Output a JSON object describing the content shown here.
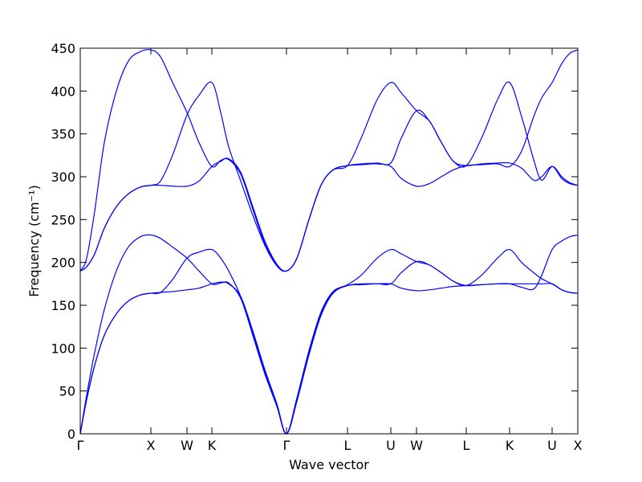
{
  "chart_data": {
    "type": "line",
    "xlabel": "Wave vector",
    "ylabel": "Frequency (cm⁻¹)",
    "xlim": [
      0,
      620
    ],
    "ylim": [
      0,
      450
    ],
    "xticks": [
      {
        "value": 0,
        "label": "Γ"
      },
      {
        "value": 88,
        "label": "X"
      },
      {
        "value": 133,
        "label": "W"
      },
      {
        "value": 164,
        "label": "K"
      },
      {
        "value": 257,
        "label": "Γ"
      },
      {
        "value": 333,
        "label": "L"
      },
      {
        "value": 387,
        "label": "U"
      },
      {
        "value": 419,
        "label": "W"
      },
      {
        "value": 481,
        "label": "L"
      },
      {
        "value": 535,
        "label": "K"
      },
      {
        "value": 588,
        "label": "U"
      },
      {
        "value": 620,
        "label": "X"
      }
    ],
    "yticks": [
      0,
      50,
      100,
      150,
      200,
      250,
      300,
      350,
      400,
      450
    ],
    "x": [
      0,
      8,
      18,
      30,
      45,
      60,
      75,
      88,
      100,
      115,
      133,
      148,
      164,
      175,
      185,
      200,
      215,
      230,
      245,
      257,
      270,
      285,
      300,
      315,
      333,
      350,
      370,
      387,
      400,
      419,
      435,
      450,
      465,
      481,
      500,
      520,
      535,
      550,
      565,
      575,
      588,
      600,
      610,
      620
    ],
    "series": [
      {
        "color": "#0000ff",
        "values": [
          0,
          40,
          80,
          115,
          140,
          155,
          162,
          164,
          165,
          166,
          168,
          170,
          175,
          177,
          175,
          160,
          120,
          75,
          35,
          0,
          38,
          92,
          138,
          164,
          173,
          174,
          175,
          175,
          170,
          167,
          168,
          170,
          172,
          173,
          174,
          175,
          175,
          171,
          169,
          185,
          215,
          225,
          230,
          232
        ]
      },
      {
        "color": "#0000ff",
        "values": [
          0,
          40,
          80,
          115,
          140,
          155,
          162,
          164,
          165,
          180,
          205,
          212,
          215,
          205,
          190,
          160,
          118,
          72,
          33,
          0,
          40,
          95,
          140,
          165,
          173,
          175,
          175,
          175,
          188,
          201,
          197,
          188,
          178,
          173,
          174,
          175,
          175,
          175,
          175,
          175,
          175,
          168,
          165,
          164
        ]
      },
      {
        "color": "#0000ff",
        "values": [
          0,
          45,
          95,
          145,
          190,
          218,
          230,
          232,
          228,
          218,
          205,
          190,
          175,
          176,
          176,
          158,
          115,
          70,
          32,
          0,
          42,
          97,
          142,
          166,
          174,
          185,
          205,
          215,
          210,
          201,
          197,
          188,
          178,
          173,
          185,
          205,
          215,
          200,
          188,
          181,
          175,
          168,
          165,
          164
        ]
      },
      {
        "color": "#0000ff",
        "values": [
          190,
          195,
          210,
          240,
          265,
          280,
          288,
          290,
          290,
          289,
          289,
          295,
          312,
          318,
          321,
          305,
          265,
          225,
          198,
          190,
          205,
          250,
          290,
          308,
          313,
          314,
          315,
          312,
          298,
          289,
          292,
          300,
          308,
          313,
          314,
          315,
          312,
          330,
          370,
          392,
          410,
          432,
          444,
          448
        ]
      },
      {
        "color": "#0000ff",
        "values": [
          190,
          195,
          210,
          240,
          265,
          280,
          288,
          290,
          295,
          325,
          372,
          395,
          410,
          375,
          335,
          295,
          255,
          220,
          196,
          190,
          205,
          250,
          290,
          308,
          313,
          315,
          316,
          316,
          345,
          377,
          365,
          340,
          318,
          313,
          315,
          316,
          316,
          310,
          296,
          300,
          312,
          298,
          292,
          290
        ]
      },
      {
        "color": "#0000ff",
        "values": [
          190,
          205,
          260,
          340,
          400,
          435,
          446,
          448,
          440,
          410,
          375,
          340,
          312,
          319,
          320,
          303,
          262,
          222,
          197,
          190,
          205,
          250,
          290,
          308,
          313,
          345,
          390,
          410,
          398,
          377,
          365,
          340,
          318,
          313,
          345,
          390,
          410,
          370,
          320,
          296,
          312,
          300,
          293,
          290
        ]
      }
    ]
  }
}
